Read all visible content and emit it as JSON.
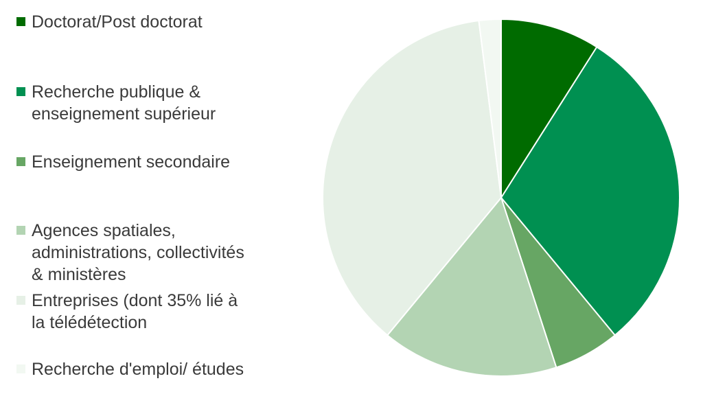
{
  "chart_data": {
    "type": "pie",
    "title": "",
    "legend_position": "left",
    "start_angle_deg": 0,
    "direction": "clockwise",
    "slices": [
      {
        "label": "Doctorat/Post doctorat",
        "value": 9.0,
        "color": "#006b00"
      },
      {
        "label": "Recherche publique &\nenseignement supérieur",
        "value": 30.0,
        "color": "#009051"
      },
      {
        "label": "Enseignement secondaire",
        "value": 6.0,
        "color": "#67a664"
      },
      {
        "label": "Agences spatiales,\nadministrations, collectivités\n& ministères",
        "value": 16.0,
        "color": "#b3d4b3"
      },
      {
        "label": "Entreprises (dont 35% lié à\nla télédétection",
        "value": 37.0,
        "color": "#e6f0e6"
      },
      {
        "label": "Recherche d'emploi/ études",
        "value": 2.0,
        "color": "#f2f8f2"
      }
    ]
  }
}
